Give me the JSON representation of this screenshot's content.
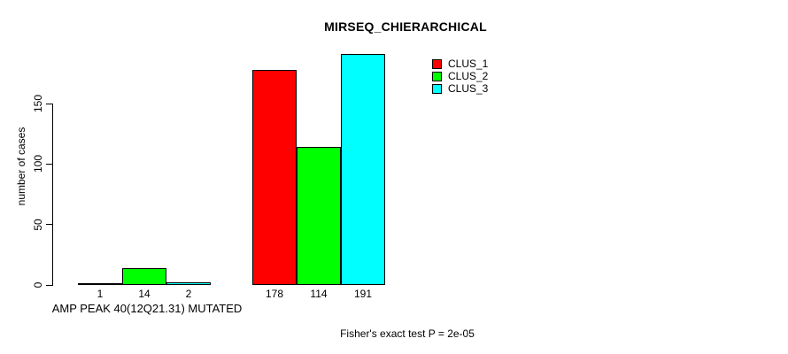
{
  "chart_data": {
    "type": "bar",
    "title": "MIRSEQ_CHIERARCHICAL",
    "ylabel": "number of cases",
    "xlabel": "AMP PEAK 40(12Q21.31) MUTATED",
    "yticks": [
      0,
      50,
      100,
      150
    ],
    "ylim": [
      0,
      195
    ],
    "grid": false,
    "legend_position": "top-right",
    "categories": [
      "AMP PEAK 40(12Q21.31) MUTATED",
      ""
    ],
    "series": [
      {
        "name": "CLUS_1",
        "color": "#ff0000",
        "values": [
          1,
          178
        ]
      },
      {
        "name": "CLUS_2",
        "color": "#00ff00",
        "values": [
          14,
          114
        ]
      },
      {
        "name": "CLUS_3",
        "color": "#00ffff",
        "values": [
          2,
          191
        ]
      }
    ],
    "bar_value_labels": [
      [
        "1",
        "14",
        "2"
      ],
      [
        "178",
        "114",
        "191"
      ]
    ],
    "subtitle": "Fisher's exact test P = 2e-05"
  },
  "colors": {
    "background": "#ffffff",
    "axis": "#000000",
    "text": "#000000"
  }
}
